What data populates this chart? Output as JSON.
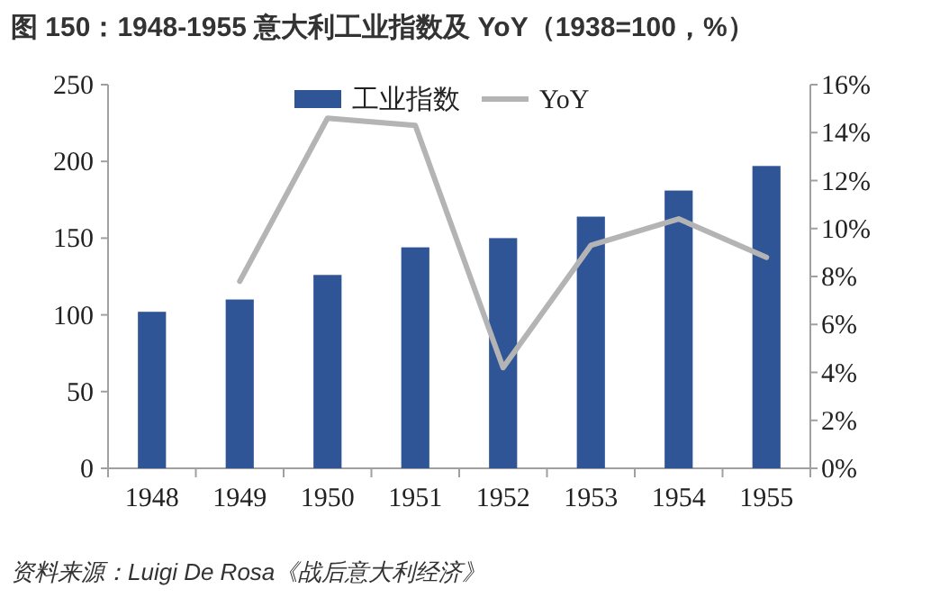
{
  "chart_data": {
    "type": "bar",
    "title": "图 150：1948-1955 意大利工业指数及 YoY（1938=100，%）",
    "categories": [
      "1948",
      "1949",
      "1950",
      "1951",
      "1952",
      "1953",
      "1954",
      "1955"
    ],
    "series": [
      {
        "name": "工业指数",
        "color": "#2f5597",
        "values": [
          102,
          110,
          126,
          144,
          150,
          164,
          181,
          197
        ]
      },
      {
        "name": "YoY",
        "type": "line",
        "axis": "y2",
        "color": "#b4b4b4",
        "marker": "none",
        "values": [
          null,
          7.8,
          14.6,
          14.3,
          4.2,
          9.3,
          10.4,
          8.8
        ]
      }
    ],
    "ylim": [
      0,
      250
    ],
    "yticks": [
      0,
      50,
      100,
      150,
      200,
      250
    ],
    "y2lim": [
      0,
      16
    ],
    "y2ticks": [
      {
        "value": 0,
        "label": "0%"
      },
      {
        "value": 2,
        "label": "2%"
      },
      {
        "value": 4,
        "label": "4%"
      },
      {
        "value": 6,
        "label": "6%"
      },
      {
        "value": 8,
        "label": "8%"
      },
      {
        "value": 10,
        "label": "10%"
      },
      {
        "value": 12,
        "label": "12%"
      },
      {
        "value": 14,
        "label": "14%"
      },
      {
        "value": 16,
        "label": "16%"
      }
    ],
    "grid": false,
    "legend": "top",
    "annotations": [
      "资料来源：Luigi De Rosa《战后意大利经济》"
    ]
  }
}
